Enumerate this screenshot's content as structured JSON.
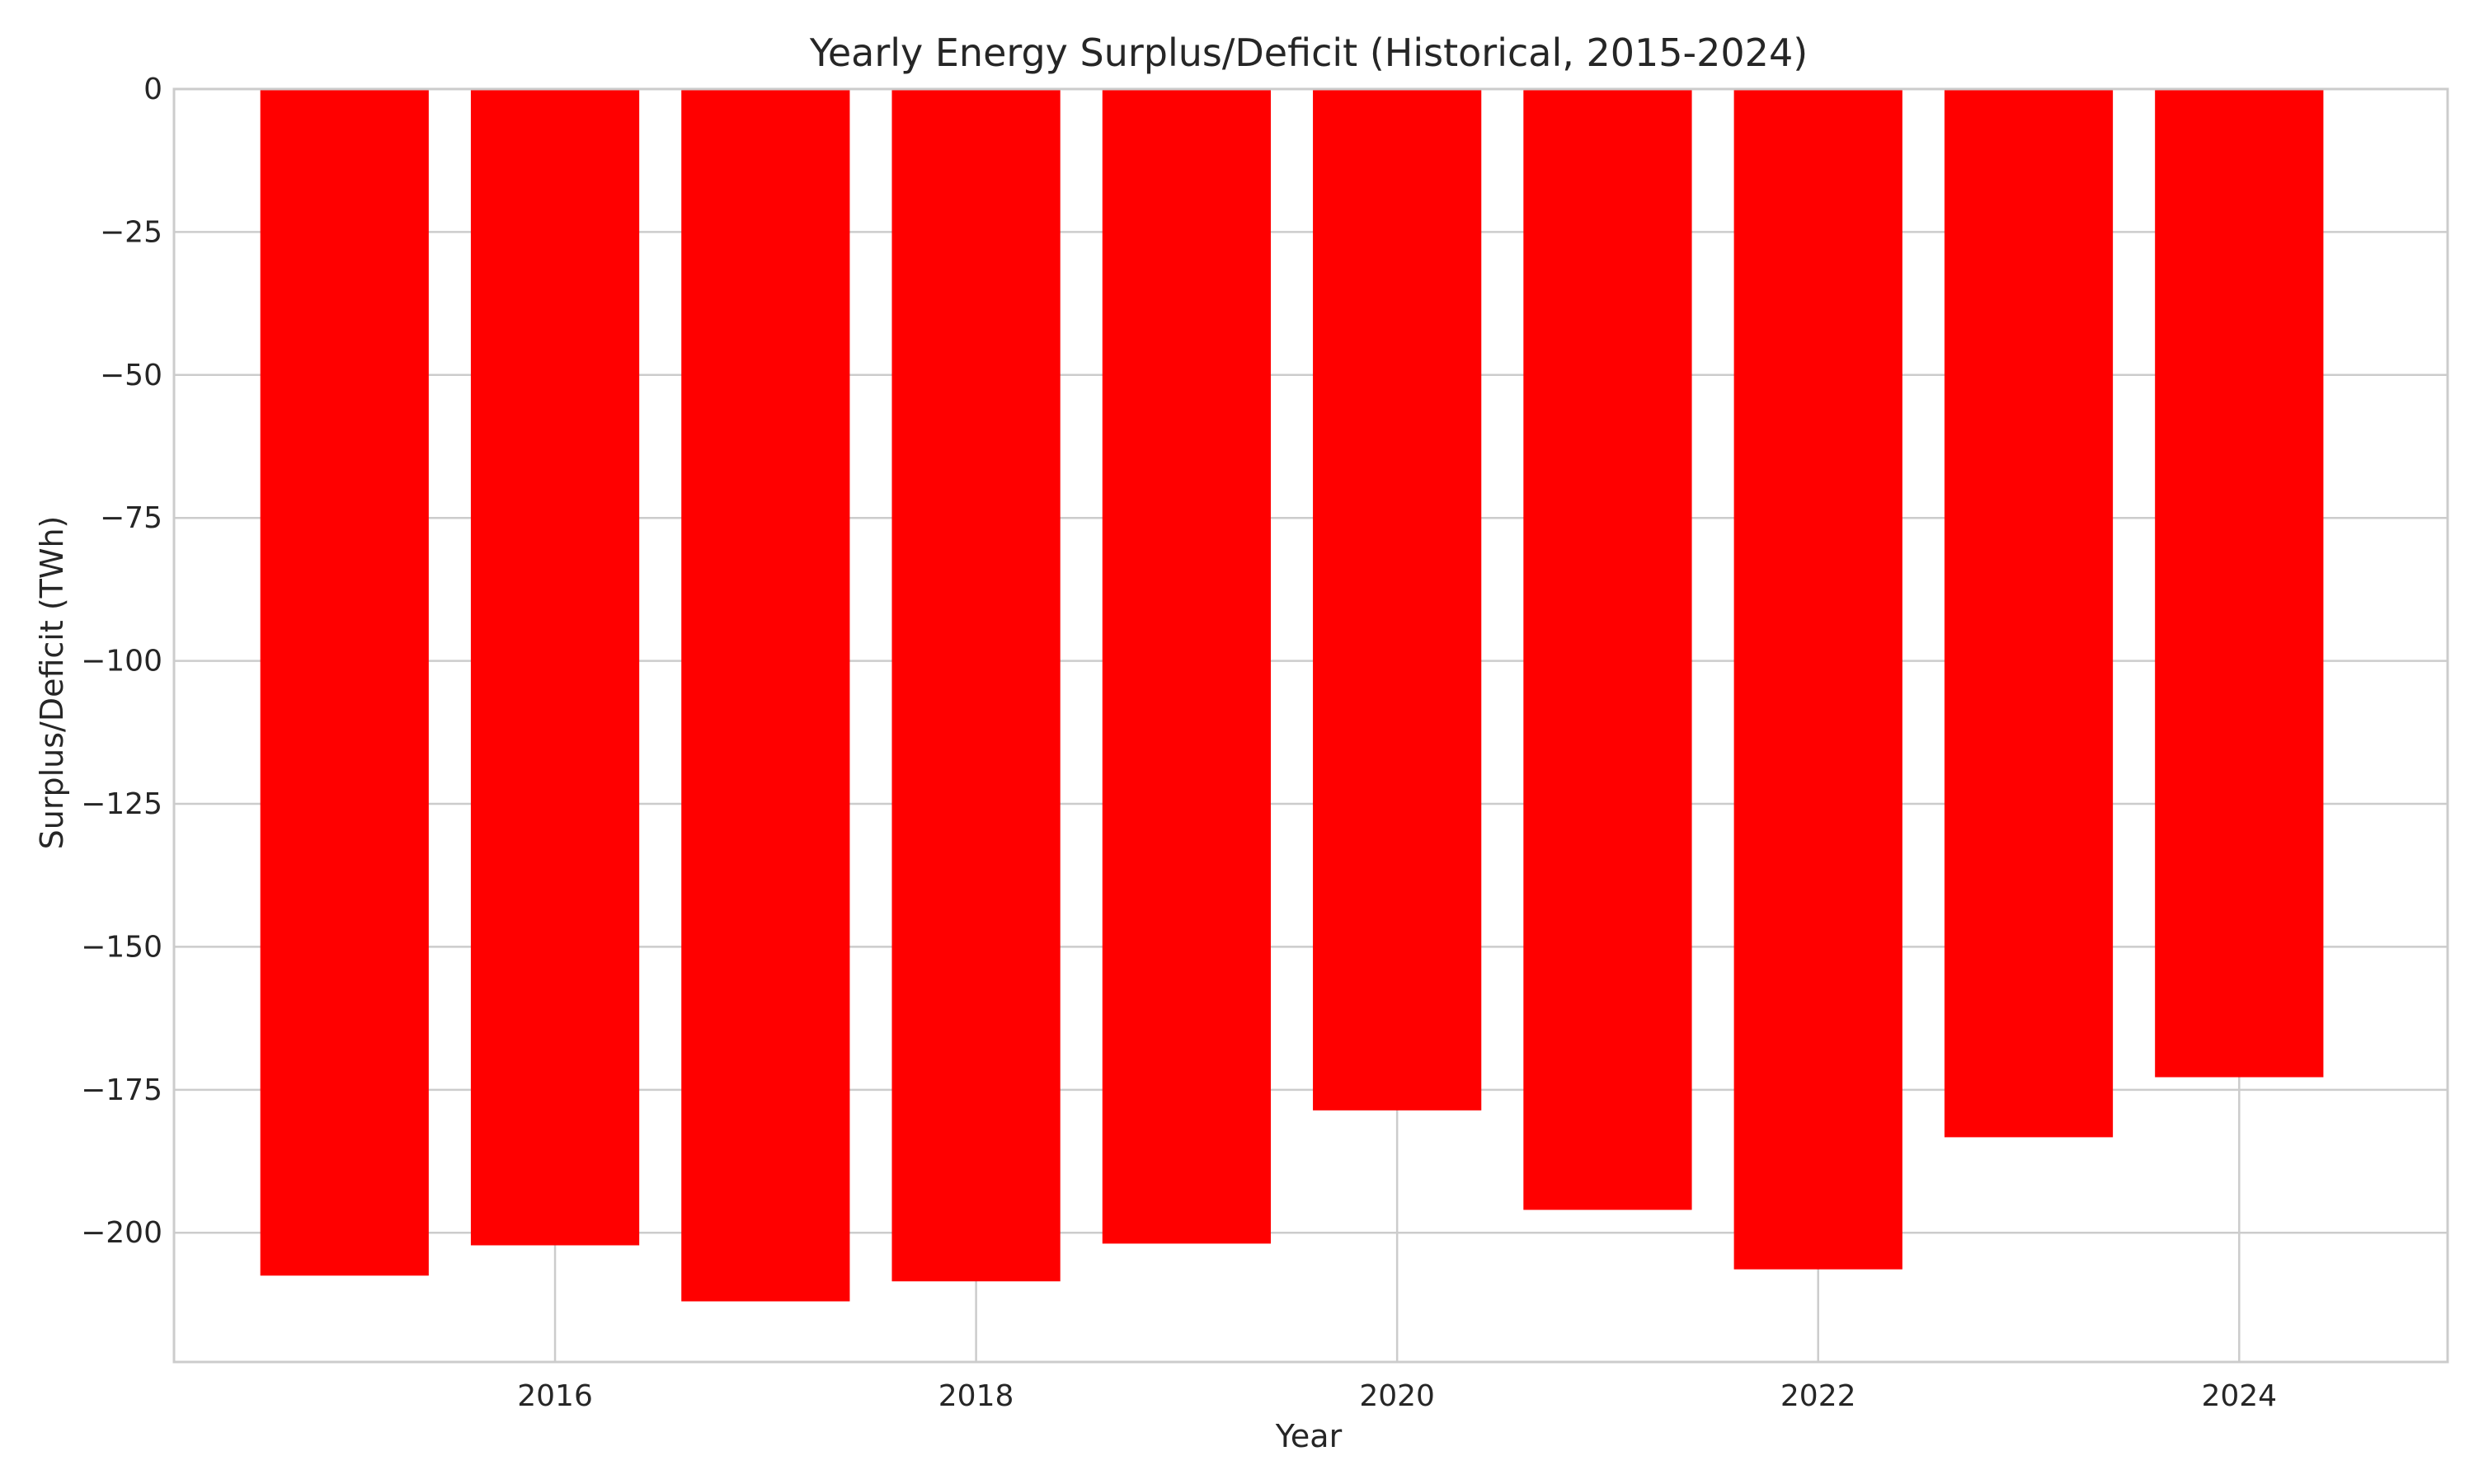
{
  "chart_data": {
    "type": "bar",
    "title": "Yearly Energy Surplus/Deficit (Historical, 2015-2024)",
    "xlabel": "Year",
    "ylabel": "Surplus/Deficit (TWh)",
    "categories": [
      2015,
      2016,
      2017,
      2018,
      2019,
      2020,
      2021,
      2022,
      2023,
      2024
    ],
    "values": [
      -207.5,
      -202.2,
      -212.0,
      -208.5,
      -201.9,
      -178.6,
      -196.0,
      -206.4,
      -183.3,
      -172.8
    ],
    "xticks": [
      2016,
      2018,
      2020,
      2022,
      2024
    ],
    "xtick_labels": [
      "2016",
      "2018",
      "2020",
      "2022",
      "2024"
    ],
    "yticks": [
      0,
      -25,
      -50,
      -75,
      -100,
      -125,
      -150,
      -175,
      -200
    ],
    "ytick_labels": [
      "0",
      "−25",
      "−50",
      "−75",
      "−100",
      "−125",
      "−150",
      "−175",
      "−200"
    ],
    "xlim": [
      2014.19,
      2024.99
    ],
    "ylim": [
      -222.6,
      0
    ],
    "bar_color": "#ff0000",
    "grid": true
  }
}
